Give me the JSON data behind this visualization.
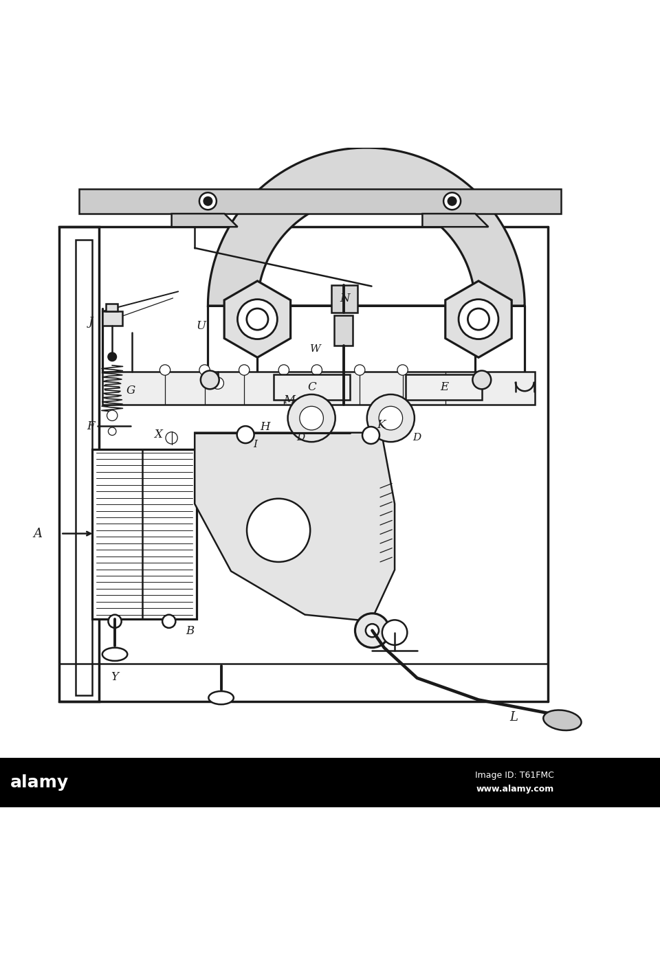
{
  "bg_color": "#ffffff",
  "line_color": "#1a1a1a",
  "line_width": 1.8,
  "thin_line": 0.9,
  "thick_line": 2.5,
  "fig_width": 9.6,
  "fig_height": 13.9,
  "footer_bg": "#000000",
  "alamy_text": "alamy",
  "image_id_text": "Image ID: T61FMC",
  "website_text": "www.alamy.com"
}
